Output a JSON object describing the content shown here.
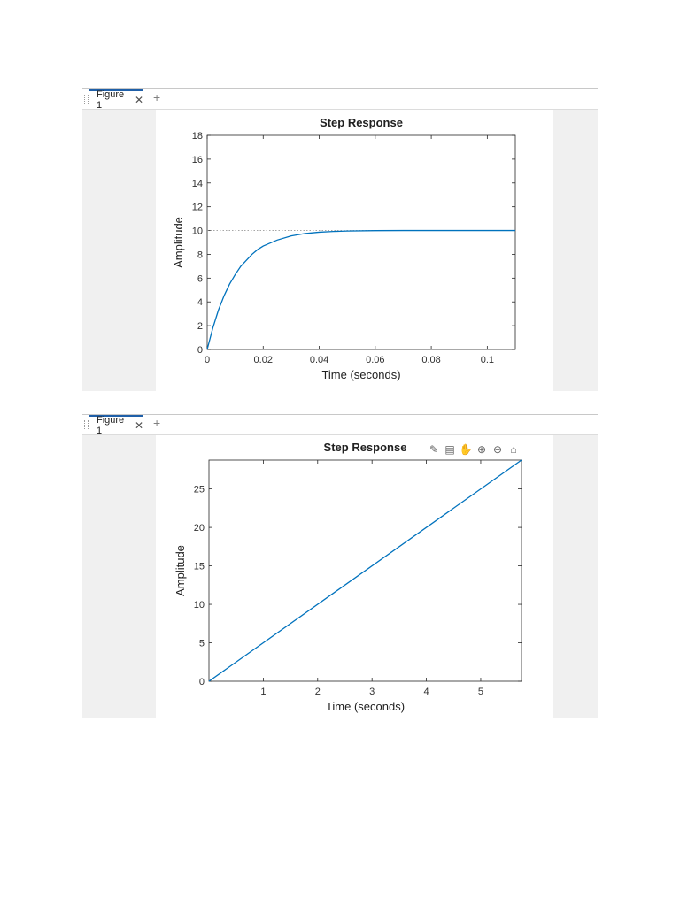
{
  "figures": [
    {
      "tab_label": "Figure 1",
      "close_icon": "close-icon",
      "add_icon": "plus-icon"
    },
    {
      "tab_label": "Figure 1",
      "close_icon": "close-icon",
      "add_icon": "plus-icon",
      "toolbar_icons": [
        "data-tips-icon",
        "brush-icon",
        "pan-icon",
        "zoom-in-icon",
        "zoom-out-icon",
        "home-icon"
      ]
    }
  ],
  "colors": {
    "line": "#0072bd",
    "axis": "#262626",
    "steady_state": "#9a9a9a"
  },
  "chart_data": [
    {
      "type": "line",
      "title": "Step Response",
      "xlabel": "Time (seconds)",
      "ylabel": "Amplitude",
      "xlim": [
        0,
        0.11
      ],
      "ylim": [
        0,
        18
      ],
      "xticks": [
        0,
        0.02,
        0.04,
        0.06,
        0.08,
        0.1
      ],
      "xtick_labels": [
        "0",
        "0.02",
        "0.04",
        "0.06",
        "0.08",
        "0.1"
      ],
      "yticks": [
        0,
        2,
        4,
        6,
        8,
        10,
        12,
        14,
        16,
        18
      ],
      "ytick_labels": [
        "0",
        "2",
        "4",
        "6",
        "8",
        "10",
        "12",
        "14",
        "16",
        "18"
      ],
      "steady_state": 10,
      "series": [
        {
          "x": [
            0,
            0.002,
            0.004,
            0.006,
            0.008,
            0.01,
            0.012,
            0.014,
            0.016,
            0.018,
            0.02,
            0.025,
            0.03,
            0.035,
            0.04,
            0.045,
            0.05,
            0.06,
            0.07,
            0.08,
            0.09,
            0.1,
            0.11
          ],
          "values": [
            0,
            1.8,
            3.3,
            4.5,
            5.5,
            6.3,
            7.0,
            7.5,
            8.0,
            8.4,
            8.7,
            9.2,
            9.55,
            9.75,
            9.86,
            9.92,
            9.96,
            9.99,
            10,
            10,
            10,
            10,
            10
          ]
        }
      ],
      "grid": false
    },
    {
      "type": "line",
      "title": "Step Response",
      "xlabel": "Time (seconds)",
      "ylabel": "Amplitude",
      "xlim": [
        0,
        5.75
      ],
      "ylim": [
        0,
        28.75
      ],
      "xticks": [
        1,
        2,
        3,
        4,
        5
      ],
      "xtick_labels": [
        "1",
        "2",
        "3",
        "4",
        "5"
      ],
      "yticks": [
        0,
        5,
        10,
        15,
        20,
        25
      ],
      "ytick_labels": [
        "0",
        "5",
        "10",
        "15",
        "20",
        "25"
      ],
      "series": [
        {
          "x": [
            0,
            5.75
          ],
          "values": [
            0,
            28.75
          ]
        }
      ],
      "grid": false
    }
  ]
}
